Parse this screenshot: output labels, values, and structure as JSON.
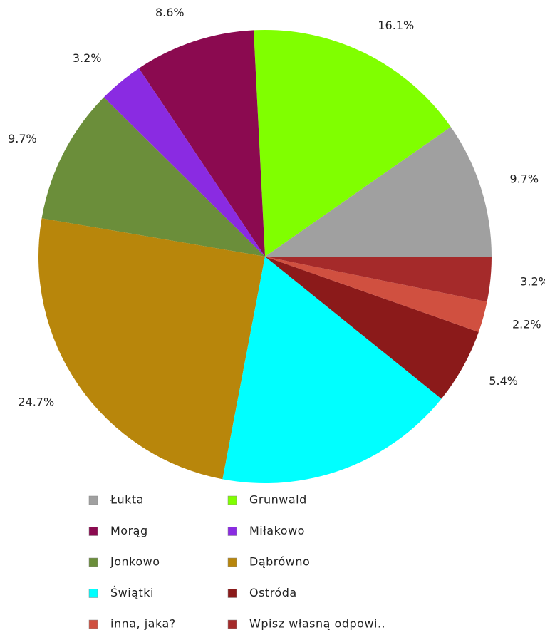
{
  "chart_data": {
    "type": "pie",
    "categories": [
      "Łukta",
      "Grunwald",
      "Morąg",
      "Miłakowo",
      "Jonkowo",
      "Dąbrówno",
      "Świątki",
      "Ostróda",
      "inna, jaka?",
      "Wpisz własną odpowi.."
    ],
    "values": [
      9.7,
      16.1,
      8.6,
      3.2,
      9.7,
      24.7,
      17.2,
      5.4,
      2.2,
      3.2
    ],
    "value_labels": [
      "9.7%",
      "16.1%",
      "8.6%",
      "3.2%",
      "9.7%",
      "24.7%",
      null,
      "5.4%",
      "2.2%",
      "3.2%"
    ],
    "colors": [
      "#a0a0a0",
      "#80ff00",
      "#8b0a50",
      "#8a2be2",
      "#6b8e3a",
      "#b8860b",
      "#00ffff",
      "#8b1a1a",
      "#d05040",
      "#a52a2a"
    ],
    "legend": "bottom"
  }
}
